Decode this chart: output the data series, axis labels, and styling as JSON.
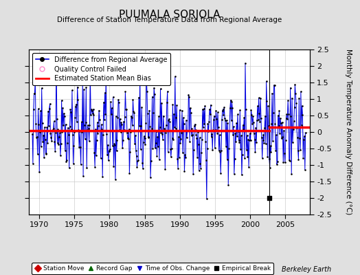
{
  "title": "PUUMALA SORJOLA",
  "subtitle": "Difference of Station Temperature Data from Regional Average",
  "ylabel": "Monthly Temperature Anomaly Difference (°C)",
  "xlabel_years": [
    1970,
    1975,
    1980,
    1985,
    1990,
    1995,
    2000,
    2005
  ],
  "ylim": [
    -2.5,
    2.5
  ],
  "xlim": [
    1968.5,
    2008.5
  ],
  "bias_line_before": 0.05,
  "bias_line_after": 0.15,
  "bias_break_x": 2002.75,
  "empirical_break_x": 2002.75,
  "empirical_break_y": -2.0,
  "background_color": "#e0e0e0",
  "plot_bg_color": "#ffffff",
  "line_color": "#0000dd",
  "fill_color": "#aabbff",
  "bias_color": "#ff0000",
  "grid_color": "#cccccc",
  "berkeley_earth_text": "Berkeley Earth",
  "left_yticks": [
    -2.0,
    -1.5,
    -1.0,
    -0.5,
    0.0,
    0.5,
    1.0,
    1.5,
    2.0
  ],
  "right_yticks": [
    2.5,
    2.0,
    1.5,
    1.0,
    0.5,
    0.0,
    -0.5,
    -1.0,
    -1.5,
    -2.0,
    -2.5
  ],
  "right_yticklabels": [
    "2.5",
    "2",
    "1.5",
    "1",
    "0.5",
    "0",
    "-0.5",
    "-1",
    "-1.5",
    "-2",
    "-2.5"
  ]
}
